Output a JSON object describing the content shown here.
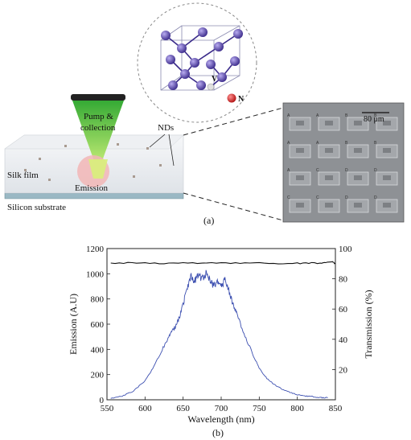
{
  "panel_a": {
    "labels": {
      "pump": "Pump &",
      "collection": "collection",
      "nds": "NDs",
      "silk_film": "Silk film",
      "emission": "Emission",
      "substrate": "Silicon substrate",
      "vacancy": "V",
      "nitrogen": "N",
      "scale_bar": "80 μm",
      "caption": "(a)"
    },
    "micrograph_cells": [
      "A",
      "A",
      "B",
      "B",
      "A",
      "A",
      "B",
      "B",
      "A",
      "C",
      "D",
      "D",
      "C",
      "C",
      "D",
      "D"
    ],
    "colors": {
      "beam": "#2fb02f",
      "carbon_atom": "#4a3a9a",
      "nitrogen_atom": "#d42020",
      "emission_spot": "#f0b8b8",
      "substrate": "#9ab8c4"
    }
  },
  "panel_b": {
    "caption": "(b)",
    "chart_data": {
      "type": "line",
      "xlabel": "Wavelength (nm)",
      "ylabel": "Emission (A.U)",
      "y2label": "Transmission (%)",
      "xlim": [
        550,
        850
      ],
      "ylim": [
        0,
        1200
      ],
      "y2lim": [
        0,
        100
      ],
      "xticks": [
        "550",
        "600",
        "650",
        "700",
        "750",
        "800",
        "850"
      ],
      "yticks": [
        "0",
        "200",
        "400",
        "600",
        "800",
        "1000",
        "1200"
      ],
      "y2ticks": [
        "20",
        "40",
        "60",
        "80",
        "100"
      ],
      "series": [
        {
          "axis": "left",
          "color": "#3c4fb0",
          "x": [
            555,
            570,
            585,
            600,
            610,
            620,
            630,
            635,
            640,
            645,
            650,
            655,
            660,
            665,
            670,
            675,
            680,
            685,
            690,
            695,
            700,
            705,
            710,
            715,
            720,
            730,
            740,
            750,
            760,
            770,
            780,
            790,
            800,
            810,
            820,
            830,
            840
          ],
          "y": [
            10,
            30,
            70,
            150,
            250,
            370,
            480,
            550,
            580,
            650,
            760,
            870,
            980,
            940,
            990,
            960,
            1000,
            960,
            900,
            940,
            900,
            950,
            870,
            760,
            690,
            530,
            380,
            250,
            170,
            120,
            85,
            60,
            40,
            30,
            25,
            18,
            15
          ]
        },
        {
          "axis": "right",
          "color": "#111111",
          "x": [
            555,
            600,
            650,
            700,
            750,
            800,
            830,
            845,
            850
          ],
          "y": [
            90.5,
            90.3,
            90.4,
            90.2,
            90.3,
            90.2,
            90.5,
            91.5,
            90
          ]
        }
      ]
    }
  }
}
